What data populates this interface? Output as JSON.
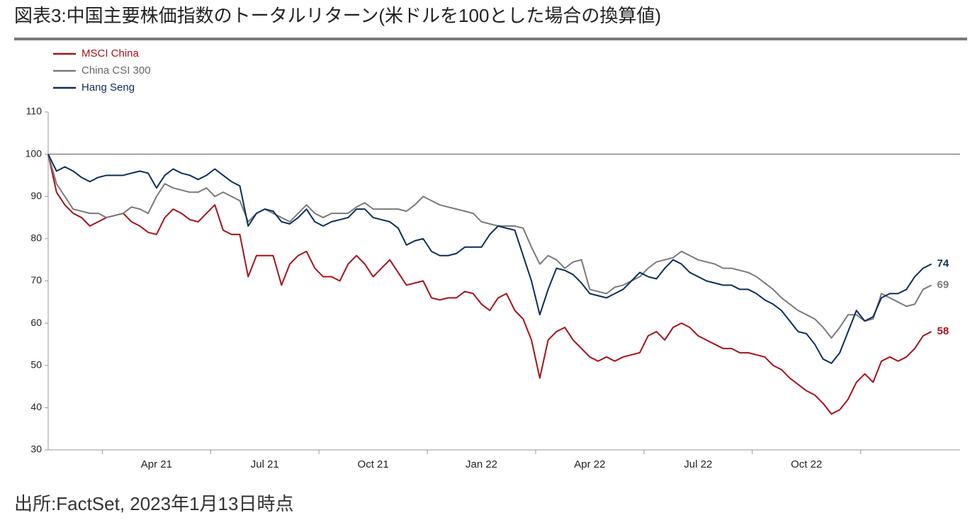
{
  "chart_data": {
    "type": "line",
    "title": "図表3:中国主要株価指数のトータルリターン(米ドルを100とした場合の換算値)",
    "source": "出所:FactSet, 2023年1月13日時点",
    "legend": "top-left",
    "hline": 100,
    "ylim": [
      30,
      110
    ],
    "yticks": [
      30,
      40,
      50,
      60,
      70,
      80,
      90,
      100,
      110
    ],
    "categories": [
      null,
      null,
      null,
      null,
      null,
      null,
      null,
      null,
      null,
      null,
      null,
      null,
      null,
      "Apr 21",
      null,
      null,
      null,
      null,
      null,
      null,
      null,
      null,
      null,
      null,
      null,
      null,
      "Jul 21",
      null,
      null,
      null,
      null,
      null,
      null,
      null,
      null,
      null,
      null,
      null,
      null,
      "Oct 21",
      null,
      null,
      null,
      null,
      null,
      null,
      null,
      null,
      null,
      null,
      null,
      null,
      "Jan 22",
      null,
      null,
      null,
      null,
      null,
      null,
      null,
      null,
      null,
      null,
      null,
      null,
      "Apr 22",
      null,
      null,
      null,
      null,
      null,
      null,
      null,
      null,
      null,
      null,
      null,
      null,
      "Jul 22",
      null,
      null,
      null,
      null,
      null,
      null,
      null,
      null,
      null,
      null,
      null,
      null,
      "Oct 22",
      null,
      null,
      null,
      null,
      null,
      null,
      null,
      null,
      null,
      null,
      null,
      null,
      null,
      null,
      null
    ],
    "series": [
      {
        "name": "MSCI China",
        "color": "#a8121c",
        "values": [
          100,
          91,
          88,
          86,
          85,
          83,
          84,
          85,
          85.5,
          86,
          84,
          83,
          81.5,
          81,
          85,
          87,
          86,
          84.5,
          84,
          86,
          88,
          82,
          81,
          81,
          71,
          76,
          76,
          76,
          69,
          74,
          76,
          77,
          73,
          71,
          71,
          70,
          74,
          76,
          74,
          71,
          73,
          75,
          72,
          69,
          69.5,
          70,
          66,
          65.5,
          66,
          66,
          67.5,
          67,
          64.5,
          63,
          66,
          67,
          63,
          61,
          56,
          47,
          56,
          58,
          59,
          56,
          54,
          52,
          51,
          52,
          51,
          52,
          52.5,
          53,
          57,
          58,
          56,
          59,
          60,
          59,
          57,
          56,
          55,
          54,
          54,
          53,
          53,
          52.5,
          52,
          50,
          49,
          47,
          45.5,
          44,
          43,
          41,
          38.5,
          39.5,
          42,
          46,
          48,
          46,
          51,
          52,
          51,
          52,
          54,
          57,
          58
        ]
      },
      {
        "name": "China CSI 300",
        "color": "#7a7a7a",
        "values": [
          100,
          93,
          90,
          87,
          86.5,
          86,
          86,
          85,
          85.5,
          86,
          87.5,
          87,
          86,
          90,
          93,
          92,
          91.5,
          91,
          91,
          92,
          90,
          91,
          90,
          89,
          84,
          86,
          87,
          86,
          85,
          84,
          86,
          88,
          86,
          85,
          86,
          86,
          86,
          87.5,
          88.5,
          87,
          87,
          87,
          87,
          86.5,
          88,
          90,
          89,
          88,
          87.5,
          87,
          86.5,
          86,
          84,
          83.5,
          83,
          83,
          83,
          82.5,
          78,
          74,
          76,
          75,
          73,
          74.5,
          75,
          68,
          67.5,
          67,
          68.5,
          69,
          70,
          71,
          73,
          74.5,
          75,
          75.5,
          77,
          76,
          75,
          74.5,
          74,
          73,
          73,
          72.5,
          72,
          71,
          69.5,
          68,
          66,
          64.5,
          63,
          62,
          61,
          59,
          56.5,
          59,
          62,
          62,
          60.5,
          61,
          67,
          66,
          65,
          64,
          64.5,
          68,
          69
        ]
      },
      {
        "name": "Hang Seng",
        "color": "#0c2d5a",
        "values": [
          100,
          96,
          97,
          96,
          94.5,
          93.5,
          94.5,
          95,
          95,
          95,
          95.5,
          96,
          95.5,
          92,
          95,
          96.5,
          95.5,
          95,
          94,
          95,
          96.5,
          95,
          93.5,
          92.5,
          83,
          86,
          87,
          86.5,
          84,
          83.5,
          85,
          87,
          84,
          83,
          84,
          84.5,
          85,
          87,
          87,
          85,
          84.5,
          84,
          82.5,
          78.5,
          79.5,
          80,
          77,
          76,
          76,
          76.5,
          78,
          78,
          78,
          81,
          83,
          82.5,
          82,
          76,
          70,
          62,
          68,
          73,
          72.5,
          71.5,
          69.5,
          67,
          66.5,
          66,
          67,
          68,
          70,
          72,
          71,
          70.5,
          73,
          75,
          74,
          72,
          71,
          70,
          69.5,
          69,
          69,
          68,
          68,
          67,
          65.5,
          64.5,
          63,
          60.5,
          58,
          57.5,
          55,
          51.5,
          50.5,
          53,
          58,
          63,
          60.5,
          61.5,
          66,
          67,
          67,
          68,
          71,
          73,
          74
        ]
      }
    ]
  }
}
